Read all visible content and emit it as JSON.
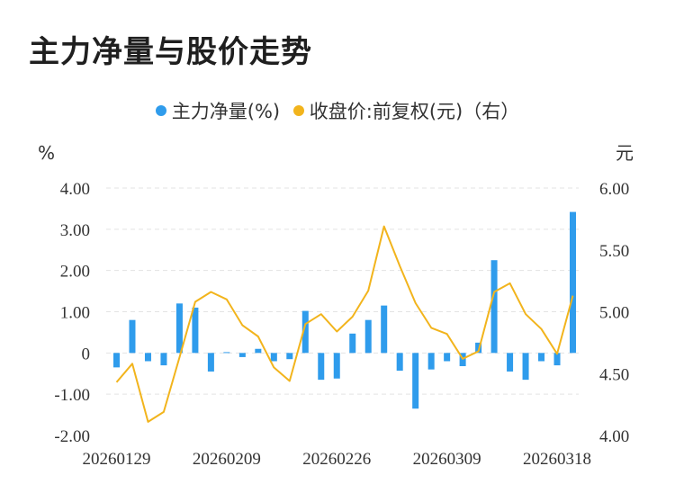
{
  "page": {
    "title": "主力净量与股价走势"
  },
  "legend": {
    "series1": "主力净量(%)",
    "series2": "收盘价:前复权(元)（右）"
  },
  "colors": {
    "bar": "#2f9cec",
    "line": "#f2b41c",
    "grid": "#e3e3e3"
  },
  "chart_data": {
    "type": "bar+line",
    "title": "主力净量与股价走势",
    "left_axis": {
      "unit": "%",
      "ylim": [
        -2,
        4
      ],
      "ticks": [
        "-2.00",
        "-1.00",
        "0",
        "1.00",
        "2.00",
        "3.00",
        "4.00"
      ]
    },
    "right_axis": {
      "unit": "元",
      "ylim": [
        4,
        6
      ],
      "ticks": [
        "4.00",
        "4.50",
        "5.00",
        "5.50",
        "6.00"
      ]
    },
    "x_tick_labels": [
      "20260129",
      "20260209",
      "20260226",
      "20260309",
      "20260318"
    ],
    "x_tick_indices": [
      0,
      7,
      14,
      21,
      28
    ],
    "grid": true,
    "legend_position": "top-center",
    "series": [
      {
        "name": "主力净量(%)",
        "type": "bar",
        "axis": "left",
        "values": [
          -0.35,
          0.8,
          -0.2,
          -0.3,
          1.2,
          1.1,
          -0.45,
          0.02,
          -0.1,
          0.1,
          -0.2,
          -0.15,
          1.02,
          -0.65,
          -0.62,
          0.47,
          0.8,
          1.15,
          -0.43,
          -1.35,
          -0.4,
          -0.2,
          -0.32,
          0.25,
          2.25,
          -0.45,
          -0.65,
          -0.2,
          -0.3,
          3.42
        ]
      },
      {
        "name": "收盘价:前复权(元)（右）",
        "type": "line",
        "axis": "right",
        "values": [
          4.43,
          4.58,
          4.11,
          4.19,
          4.63,
          5.08,
          5.16,
          5.1,
          4.89,
          4.8,
          4.55,
          4.44,
          4.9,
          4.98,
          4.84,
          4.96,
          5.17,
          5.69,
          5.37,
          5.07,
          4.87,
          4.82,
          4.62,
          4.68,
          5.16,
          5.23,
          4.98,
          4.86,
          4.66,
          5.13
        ]
      }
    ]
  }
}
